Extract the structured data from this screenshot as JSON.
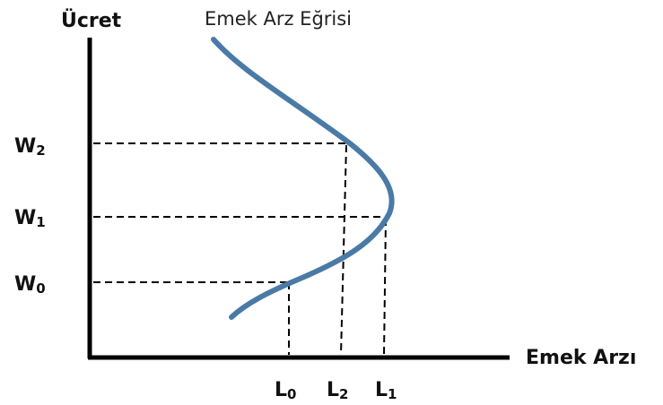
{
  "diagram": {
    "y_axis_label": "Ücret",
    "x_axis_label": "Emek Arzı",
    "curve_label": "Emek Arz Eğrisi",
    "wage_levels": [
      {
        "id": "W0",
        "base": "W",
        "sub": "0"
      },
      {
        "id": "W1",
        "base": "W",
        "sub": "1"
      },
      {
        "id": "W2",
        "base": "W",
        "sub": "2"
      }
    ],
    "labor_levels": [
      {
        "id": "L0",
        "base": "L",
        "sub": "0"
      },
      {
        "id": "L2",
        "base": "L",
        "sub": "2"
      },
      {
        "id": "L1",
        "base": "L",
        "sub": "1"
      }
    ],
    "colors": {
      "curve": "#4a7aa6",
      "axes": "#000000",
      "guides": "#000000"
    }
  }
}
